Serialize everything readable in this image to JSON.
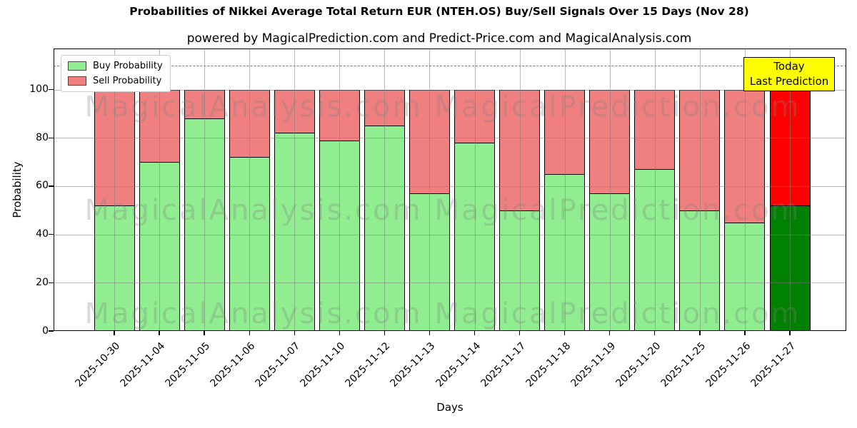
{
  "title": "Probabilities of Nikkei Average Total Return EUR (NTEH.OS) Buy/Sell Signals Over 15 Days (Nov 28)",
  "subtitle": "powered by MagicalPrediction.com and Predict-Price.com and MagicalAnalysis.com",
  "chart_data": {
    "type": "bar",
    "stacked": true,
    "categories": [
      "2025-10-30",
      "2025-11-04",
      "2025-11-05",
      "2025-11-06",
      "2025-11-07",
      "2025-11-10",
      "2025-11-12",
      "2025-11-13",
      "2025-11-14",
      "2025-11-17",
      "2025-11-18",
      "2025-11-19",
      "2025-11-20",
      "2025-11-25",
      "2025-11-26",
      "2025-11-27"
    ],
    "series": [
      {
        "name": "Buy Probability",
        "values": [
          52,
          70,
          88,
          72,
          82,
          79,
          85,
          57,
          78,
          50,
          65,
          57,
          67,
          50,
          45,
          52
        ],
        "color": "#90EE90",
        "today_color": "#008000"
      },
      {
        "name": "Sell Probability",
        "values": [
          48,
          30,
          12,
          28,
          18,
          21,
          15,
          43,
          22,
          50,
          35,
          43,
          33,
          50,
          55,
          48
        ],
        "color": "#F08080",
        "today_color": "#FF0000"
      }
    ],
    "xlabel": "Days",
    "ylabel": "Probability",
    "ylim": [
      0,
      117
    ],
    "yticks": [
      0,
      20,
      40,
      60,
      80,
      100
    ],
    "dashed_line_y": 110,
    "grid": true,
    "legend_position": "upper left",
    "bar_edge_color": "#000000"
  },
  "legend": {
    "items": [
      {
        "label": "Buy Probability",
        "color": "#90EE90"
      },
      {
        "label": "Sell Probability",
        "color": "#F08080"
      }
    ]
  },
  "today_box": {
    "line1": "Today",
    "line2": "Last Prediction",
    "bg": "#FFFF00"
  },
  "watermarks": {
    "left": "MagicalAnalysis.com",
    "right": "MagicalPrediction.com"
  },
  "colors": {
    "grid": "#808080",
    "dashed_line": "#7a7a7a",
    "frame": "#000000",
    "background": "#FFFFFF"
  }
}
